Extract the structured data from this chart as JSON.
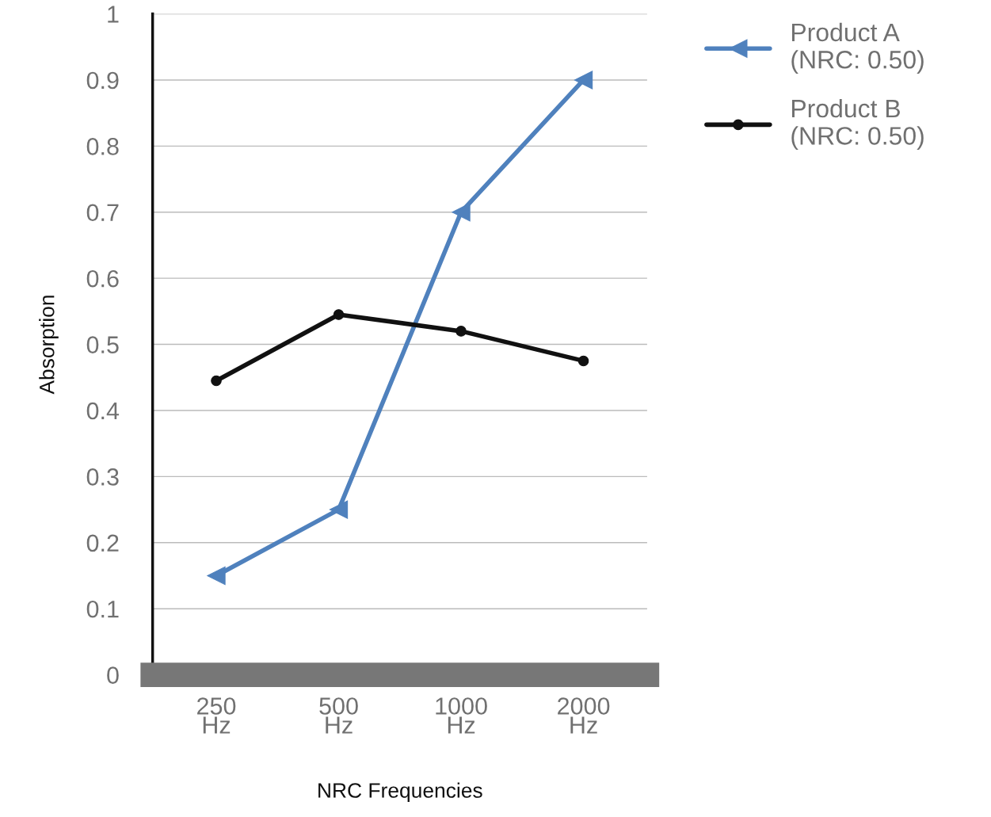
{
  "chart_data": {
    "type": "line",
    "xlabel": "NRC Frequencies",
    "ylabel": "Absorption",
    "categories": [
      "250\nHz",
      "500\nHz",
      "1000\nHz",
      "2000\nHz"
    ],
    "series": [
      {
        "name": "Product A\n(NRC: 0.50)",
        "color": "#4f81bd",
        "marker": "triangle",
        "values": [
          0.15,
          0.25,
          0.7,
          0.9
        ]
      },
      {
        "name": "Product B\n(NRC: 0.50)",
        "color": "#111111",
        "marker": "circle",
        "values": [
          0.445,
          0.545,
          0.52,
          0.475
        ]
      }
    ],
    "ylim": [
      0,
      1
    ],
    "yticks": [
      0,
      0.1,
      0.2,
      0.3,
      0.4,
      0.5,
      0.6,
      0.7,
      0.8,
      0.9,
      1
    ],
    "grid": "y",
    "legend": "top right",
    "line_style": "solid"
  }
}
